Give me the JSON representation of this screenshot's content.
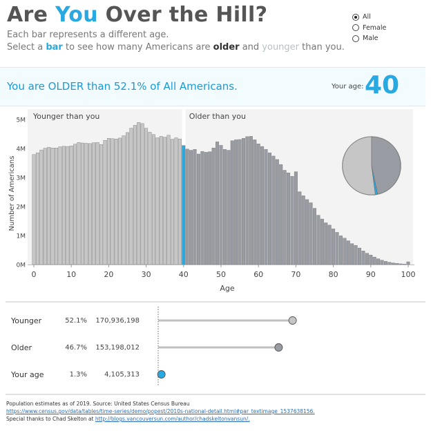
{
  "header": {
    "title_pre": "Are ",
    "title_accent": "You",
    "title_post": " Over the Hill?",
    "subtitle1": "Each bar represents a different age.",
    "subtitle2_a": "Select a ",
    "subtitle2_bar": "bar",
    "subtitle2_b": " to see how many Americans are ",
    "subtitle2_older": "older",
    "subtitle2_c": " and ",
    "subtitle2_younger": "younger",
    "subtitle2_d": " than you."
  },
  "filter": {
    "options": [
      "All",
      "Female",
      "Male"
    ],
    "selected": "All"
  },
  "banner": {
    "message": "You are OLDER than 52.1% of All Americans.",
    "age_label": "Your age:",
    "age_value": "40"
  },
  "colors": {
    "younger": "#c6c6c6",
    "older": "#9a9ca3",
    "selected": "#29a9e1",
    "accent": "#29a9e1"
  },
  "chart_data": {
    "type": "bar",
    "ylabel": "Number of Americans",
    "xlabel": "Age",
    "ylim": [
      0,
      5000000
    ],
    "yticks": [
      0,
      1000000,
      2000000,
      3000000,
      4000000,
      5000000
    ],
    "ytick_labels": [
      "0M",
      "1M",
      "2M",
      "3M",
      "4M",
      "5M"
    ],
    "xticks": [
      0,
      10,
      20,
      30,
      40,
      50,
      60,
      70,
      80,
      90,
      100
    ],
    "selected_age": 40,
    "region_labels": {
      "younger": "Younger than you",
      "older": "Older than you"
    },
    "ages": [
      0,
      1,
      2,
      3,
      4,
      5,
      6,
      7,
      8,
      9,
      10,
      11,
      12,
      13,
      14,
      15,
      16,
      17,
      18,
      19,
      20,
      21,
      22,
      23,
      24,
      25,
      26,
      27,
      28,
      29,
      30,
      31,
      32,
      33,
      34,
      35,
      36,
      37,
      38,
      39,
      40,
      41,
      42,
      43,
      44,
      45,
      46,
      47,
      48,
      49,
      50,
      51,
      52,
      53,
      54,
      55,
      56,
      57,
      58,
      59,
      60,
      61,
      62,
      63,
      64,
      65,
      66,
      67,
      68,
      69,
      70,
      71,
      72,
      73,
      74,
      75,
      76,
      77,
      78,
      79,
      80,
      81,
      82,
      83,
      84,
      85,
      86,
      87,
      88,
      89,
      90,
      91,
      92,
      93,
      94,
      95,
      96,
      97,
      98,
      99,
      100
    ],
    "values": [
      3790000,
      3850000,
      3950000,
      4010000,
      4040000,
      4020000,
      4020000,
      4060000,
      4080000,
      4070000,
      4090000,
      4150000,
      4210000,
      4190000,
      4180000,
      4170000,
      4200000,
      4210000,
      4140000,
      4280000,
      4350000,
      4340000,
      4330000,
      4360000,
      4440000,
      4550000,
      4700000,
      4800000,
      4900000,
      4860000,
      4700000,
      4560000,
      4480000,
      4370000,
      4420000,
      4390000,
      4460000,
      4320000,
      4370000,
      4330000,
      4105000,
      3980000,
      3940000,
      3970000,
      3810000,
      3900000,
      3870000,
      3890000,
      4020000,
      4230000,
      4110000,
      3970000,
      3940000,
      4270000,
      4300000,
      4310000,
      4350000,
      4410000,
      4420000,
      4300000,
      4160000,
      4070000,
      3970000,
      3850000,
      3740000,
      3620000,
      3450000,
      3250000,
      3160000,
      3040000,
      3200000,
      2510000,
      2370000,
      2240000,
      2130000,
      1940000,
      1700000,
      1570000,
      1440000,
      1360000,
      1230000,
      1110000,
      990000,
      910000,
      820000,
      720000,
      660000,
      570000,
      470000,
      390000,
      330000,
      260000,
      200000,
      150000,
      110000,
      80000,
      55000,
      40000,
      25000,
      15000,
      95000
    ]
  },
  "pie": {
    "segments": [
      {
        "name": "Younger",
        "value": 52.1
      },
      {
        "name": "Your age",
        "value": 1.3
      },
      {
        "name": "Older",
        "value": 46.7
      }
    ]
  },
  "summary": {
    "rows": [
      {
        "label": "Younger",
        "pct": "52.1%",
        "count": "170,936,198",
        "value": 170936198,
        "color": "#c6c6c6"
      },
      {
        "label": "Older",
        "pct": "46.7%",
        "count": "153,198,012",
        "value": 153198012,
        "color": "#9a9ca3"
      },
      {
        "label": "Your age",
        "pct": "1.3%",
        "count": "4,105,313",
        "value": 4105313,
        "color": "#29a9e1"
      }
    ],
    "scale_max": 195000000
  },
  "footer": {
    "line1": "Population estimates as of 2019. Source: United States Census Bureau",
    "link1": "https://www.census.gov/data/tables/time-series/demo/popest/2010s-national-detail.html#par_textimage_1537638156.",
    "line3_prefix": "Special thanks to Chad Skelton at ",
    "link2": "http://blogs.vancouversun.com/author/chadskeltonvansun/."
  }
}
